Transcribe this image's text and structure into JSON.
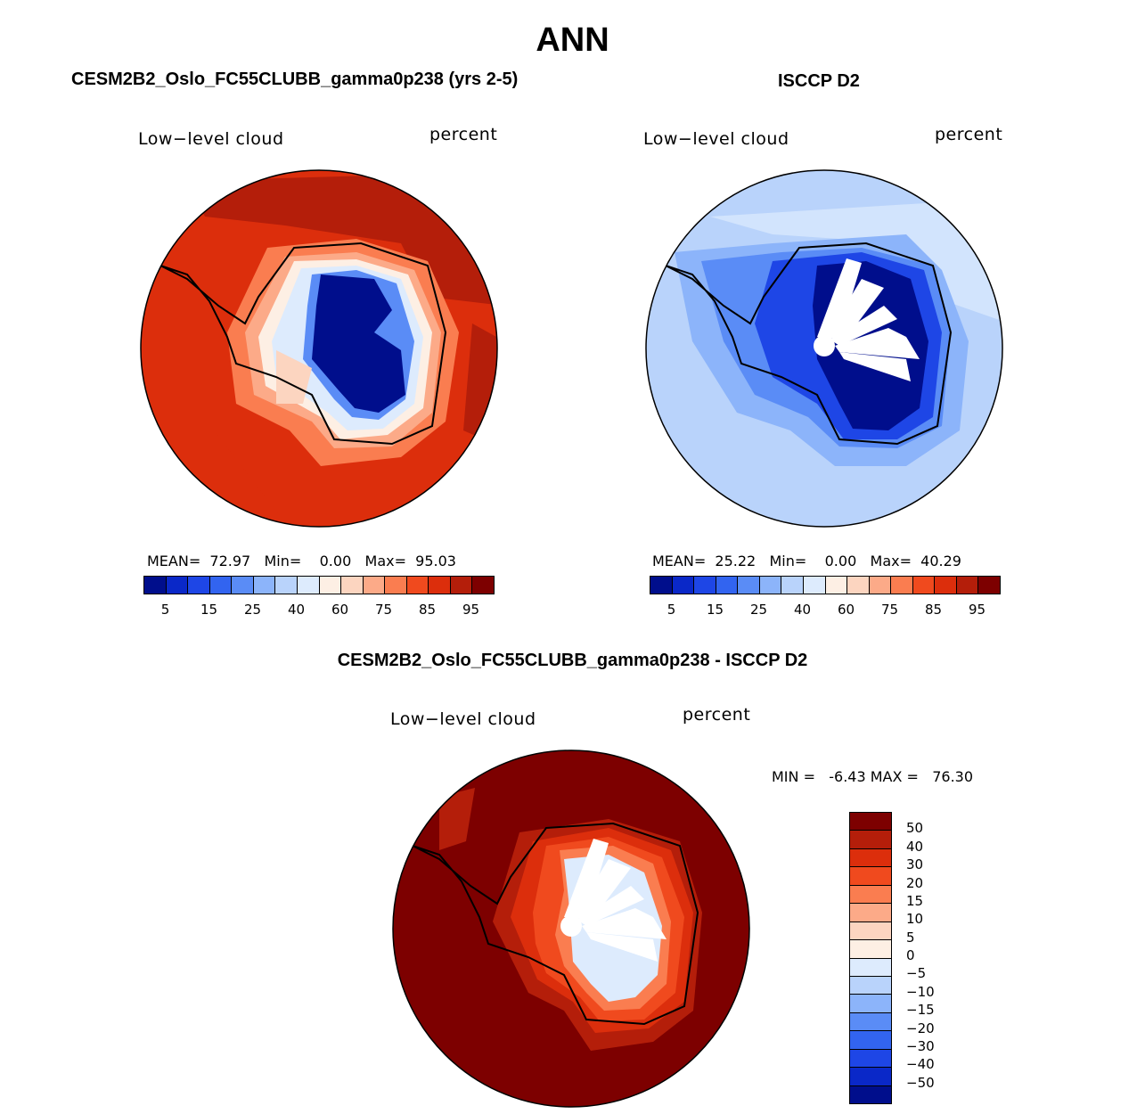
{
  "title": "ANN",
  "colors": {
    "full_scale": [
      "#000e8c",
      "#0a28c8",
      "#1e46e6",
      "#3264f0",
      "#5a8cf6",
      "#8cb4fa",
      "#b9d3fb",
      "#ddebfd",
      "#fdefe4",
      "#fcd5c0",
      "#fcaa88",
      "#fa7d50",
      "#f04a1e",
      "#dc2e0c",
      "#b41e0a",
      "#7d0000"
    ],
    "diff_scale": [
      "#7d0000",
      "#b41e0a",
      "#dc2e0c",
      "#f04a1e",
      "#fa7d50",
      "#fcaa88",
      "#fcd5c0",
      "#fdefe4",
      "#ddebfd",
      "#b9d3fb",
      "#8cb4fa",
      "#5a8cf6",
      "#3264f0",
      "#1e46e6",
      "#0a28c8",
      "#000e8c"
    ]
  },
  "panels": {
    "model": {
      "title": "CESM2B2_Oslo_FC55CLUBB_gamma0p238 (yrs 2-5)",
      "variable": "Low−level cloud",
      "units": "percent",
      "mean_label": "MEAN=",
      "mean": "72.97",
      "min_label": "Min=",
      "min": "0.00",
      "max_label": "Max=",
      "max": "95.03",
      "ticks": [
        "5",
        "15",
        "25",
        "40",
        "60",
        "75",
        "85",
        "95"
      ]
    },
    "obs": {
      "title": "ISCCP D2",
      "variable": "Low−level cloud",
      "units": "percent",
      "mean_label": "MEAN=",
      "mean": "25.22",
      "min_label": "Min=",
      "min": "0.00",
      "max_label": "Max=",
      "max": "40.29",
      "ticks": [
        "5",
        "15",
        "25",
        "40",
        "60",
        "75",
        "85",
        "95"
      ]
    },
    "diff": {
      "title": "CESM2B2_Oslo_FC55CLUBB_gamma0p238 - ISCCP D2",
      "variable": "Low−level cloud",
      "units": "percent",
      "min_label": "MIN =",
      "min": "-6.43",
      "max_label": "MAX =",
      "max": "76.30",
      "ticks": [
        "50",
        "40",
        "30",
        "20",
        "15",
        "10",
        "5",
        "0",
        "−5",
        "−10",
        "−15",
        "−20",
        "−30",
        "−40",
        "−50"
      ]
    }
  }
}
